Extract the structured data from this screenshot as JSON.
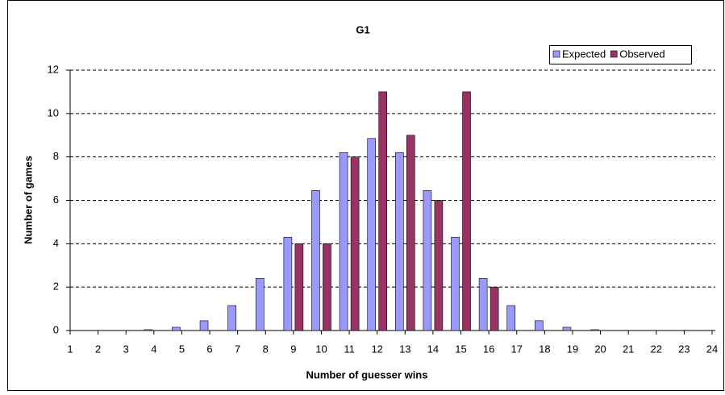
{
  "chart_data": {
    "type": "bar",
    "title": "G1",
    "x_label": "Number of guesser wins",
    "y_label": "Number of games",
    "categories": [
      "1",
      "2",
      "3",
      "4",
      "5",
      "6",
      "7",
      "8",
      "9",
      "10",
      "11",
      "12",
      "13",
      "14",
      "15",
      "16",
      "17",
      "18",
      "19",
      "20",
      "21",
      "22",
      "23",
      "24"
    ],
    "series": [
      {
        "name": "Expected",
        "color": "#9999ff",
        "values": [
          0,
          0,
          0,
          0.04,
          0.15,
          0.45,
          1.15,
          2.4,
          4.3,
          6.45,
          8.2,
          8.85,
          8.2,
          6.45,
          4.3,
          2.4,
          1.15,
          0.45,
          0.15,
          0.04,
          0,
          0,
          0,
          0
        ]
      },
      {
        "name": "Observed",
        "color": "#993366",
        "values": [
          0,
          0,
          0,
          0,
          0,
          0,
          0,
          0,
          4,
          4,
          8,
          11,
          9,
          6,
          11,
          2,
          0,
          0,
          0,
          0,
          0,
          0,
          0,
          0
        ]
      }
    ],
    "ylim": [
      0,
      12
    ],
    "yticks": [
      0,
      2,
      4,
      6,
      8,
      10,
      12
    ],
    "grid": true,
    "legend": "top-right"
  }
}
